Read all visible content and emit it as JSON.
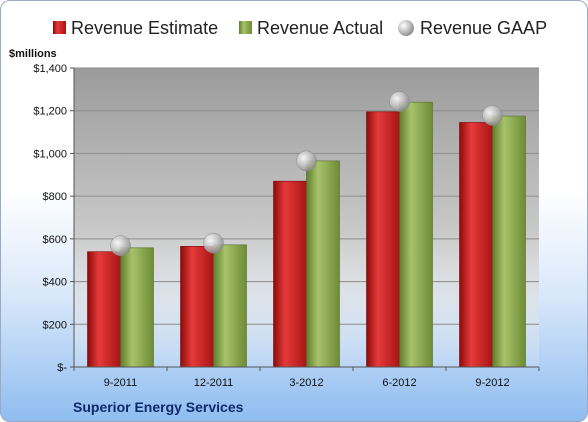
{
  "chart_data": {
    "type": "bar",
    "title": "",
    "unit_label": "$millions",
    "company": "Superior Energy Services",
    "categories": [
      "9-2011",
      "12-2011",
      "3-2012",
      "6-2012",
      "9-2012"
    ],
    "series": [
      {
        "name": "Revenue Estimate",
        "kind": "bar",
        "color": "#d42020",
        "values": [
          540,
          565,
          870,
          1195,
          1145
        ]
      },
      {
        "name": "Revenue Actual",
        "kind": "bar",
        "color": "#8aab4e",
        "values": [
          558,
          572,
          965,
          1240,
          1175
        ]
      },
      {
        "name": "Revenue GAAP",
        "kind": "marker",
        "color": "#c8c8c8",
        "values": [
          568,
          580,
          965,
          1243,
          1178
        ]
      }
    ],
    "ylim": [
      0,
      1400
    ],
    "yticks": [
      0,
      200,
      400,
      600,
      800,
      1000,
      1200,
      1400
    ],
    "ytick_labels": [
      "$-",
      "$200",
      "$400",
      "$600",
      "$800",
      "$1,000",
      "$1,200",
      "$1,400"
    ],
    "grid": true,
    "legend_position": "top"
  }
}
